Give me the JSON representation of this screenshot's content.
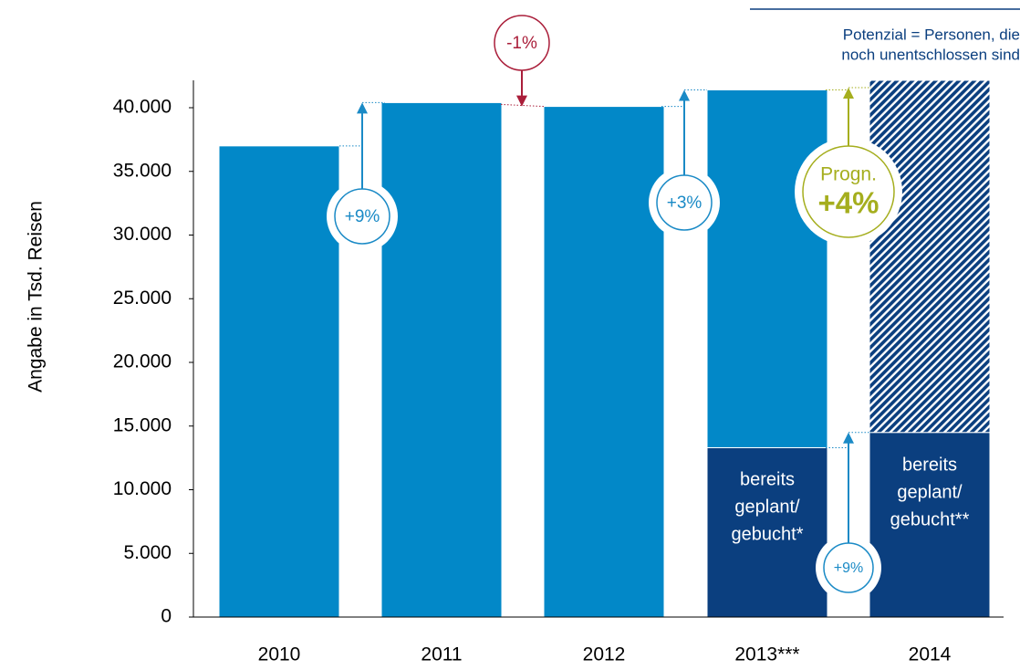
{
  "chart_data": {
    "type": "bar",
    "y_label": "Angabe in Tsd. Reisen",
    "categories": [
      "2010",
      "2011",
      "2012",
      "2013***",
      "2014"
    ],
    "series": [
      {
        "color": "#0b3f7f",
        "values": [
          null,
          null,
          null,
          13300,
          14500
        ]
      },
      {
        "color": "#0288c8",
        "values": [
          37000,
          40400,
          40100,
          28100,
          null
        ]
      },
      {
        "color": "#0b3f7f",
        "pattern": "hatched",
        "values": [
          null,
          null,
          null,
          null,
          27650
        ]
      }
    ],
    "ylim": [
      0,
      42150
    ],
    "yticks": [
      0,
      {
        "value": 5000,
        "label": "5.000"
      },
      {
        "value": 10000,
        "label": "10.000"
      },
      {
        "value": 15000,
        "label": "15.000"
      },
      {
        "value": 20000,
        "label": "20.000"
      },
      {
        "value": 25000,
        "label": "25.000"
      },
      {
        "value": 30000,
        "label": "30.000"
      },
      {
        "value": 35000,
        "label": "35.000"
      },
      {
        "value": 40000,
        "label": "40.000"
      }
    ],
    "changes": [
      "+9%",
      "-1%",
      "+3%",
      "+9%"
    ],
    "forecast": [
      "Progn.",
      "+4%"
    ],
    "bar_labels": [
      [
        "bereits",
        "geplant/",
        "gebucht*"
      ],
      [
        "bereits",
        "geplant/",
        "gebucht**"
      ]
    ],
    "note": [
      "Potenzial = Personen, die",
      "noch unentschlossen sind"
    ]
  }
}
